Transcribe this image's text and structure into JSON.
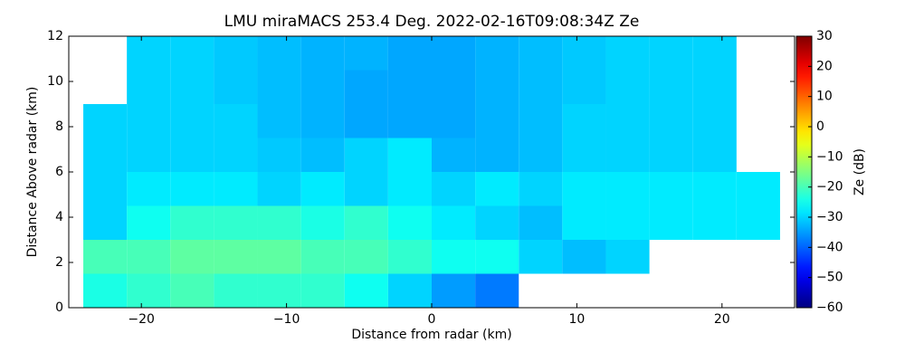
{
  "chart_data": {
    "type": "heatmap",
    "title": "LMU miraMACS 253.4 Deg. 2022-02-16T09:08:34Z  Ze",
    "xlabel": "Distance from radar (km)",
    "ylabel": "Distance Above radar  (km)",
    "colorbar_label": "Ze (dB)",
    "colormap": "jet",
    "xlim": [
      -25,
      25
    ],
    "ylim": [
      0,
      12
    ],
    "clim": [
      -60,
      30
    ],
    "xticks": [
      {
        "value": -20,
        "label": "−20"
      },
      {
        "value": -10,
        "label": "−10"
      },
      0,
      10,
      20
    ],
    "yticks": [
      0,
      2,
      4,
      6,
      8,
      10,
      12
    ],
    "cticks": [
      {
        "value": -60,
        "label": "−60"
      },
      {
        "value": -50,
        "label": "−50"
      },
      {
        "value": -40,
        "label": "−40"
      },
      {
        "value": -30,
        "label": "−30"
      },
      {
        "value": -20,
        "label": "−20"
      },
      {
        "value": -10,
        "label": "−10"
      },
      0,
      10,
      20,
      30
    ],
    "xbins": [
      -24,
      -21,
      -18,
      -15,
      -12,
      -9,
      -6,
      -3,
      0,
      3,
      6,
      9,
      12,
      15,
      18,
      21,
      24
    ],
    "ybins": [
      0,
      1.5,
      3,
      4.5,
      6,
      7.5,
      9,
      10.5,
      12
    ],
    "values": [
      [
        -24,
        -22,
        -20,
        -22,
        -22,
        -22,
        -25,
        -30,
        -35,
        -38,
        null,
        null,
        null,
        null,
        null,
        null
      ],
      [
        -20,
        -20,
        -18,
        -18,
        -18,
        -20,
        -20,
        -22,
        -25,
        -25,
        -30,
        -32,
        -30,
        null,
        null,
        null
      ],
      [
        -30,
        -25,
        -22,
        -22,
        -22,
        -24,
        -22,
        -25,
        -28,
        -30,
        -32,
        -28,
        -28,
        -28,
        -28,
        -28
      ],
      [
        -30,
        -28,
        -28,
        -28,
        -30,
        -28,
        -30,
        -28,
        -30,
        -28,
        -30,
        -28,
        -28,
        -28,
        -28,
        -28
      ],
      [
        -30,
        -30,
        -30,
        -30,
        -31,
        -32,
        -30,
        -28,
        -33,
        -33,
        -32,
        -30,
        -30,
        -30,
        -30,
        null
      ],
      [
        -30,
        -30,
        -30,
        -30,
        -32,
        -33,
        -34,
        -34,
        -34,
        -33,
        -32,
        -30,
        -30,
        -30,
        -30,
        null
      ],
      [
        null,
        -30,
        -30,
        -31,
        -32,
        -33,
        -34,
        -34,
        -34,
        -33,
        -32,
        -31,
        -30,
        -30,
        -30,
        null
      ],
      [
        null,
        -30,
        -30,
        -31,
        -32,
        -33,
        -33,
        -34,
        -34,
        -33,
        -32,
        -31,
        -30,
        -30,
        -30,
        null
      ]
    ]
  }
}
